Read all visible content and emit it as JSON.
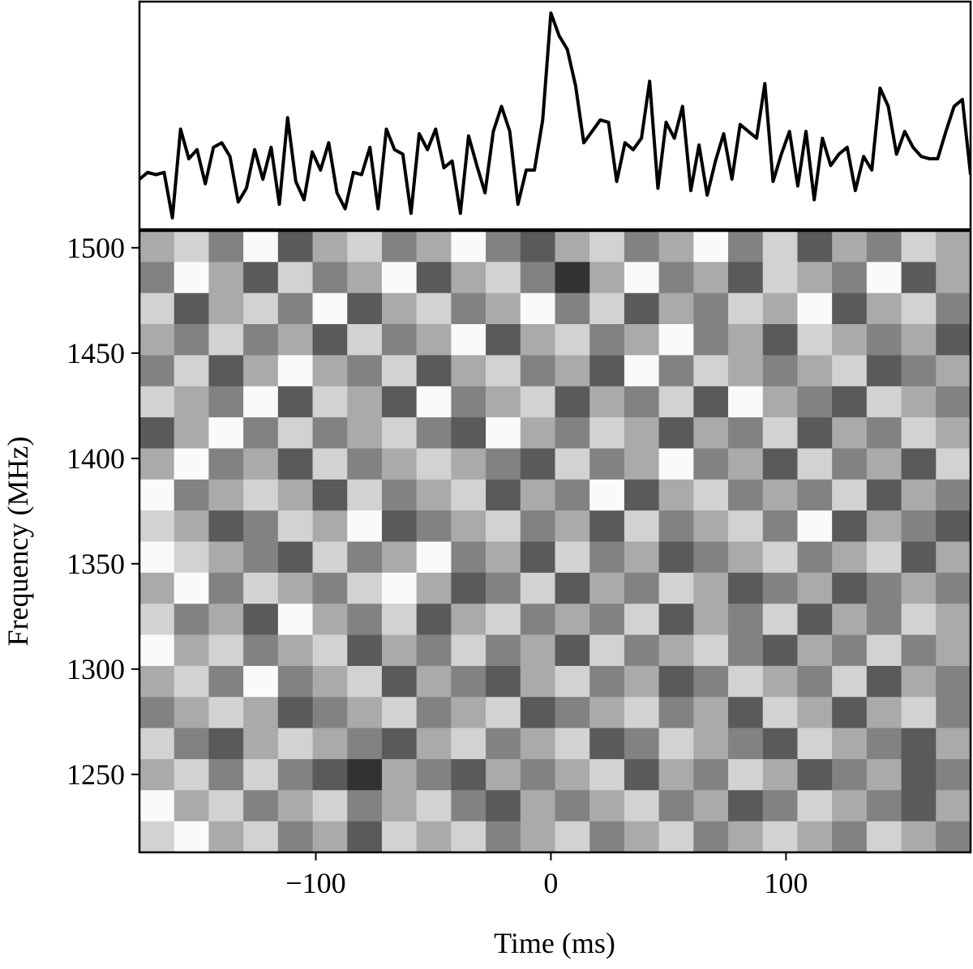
{
  "chart_data": [
    {
      "type": "line",
      "color": "#000000",
      "xlim": [
        -175,
        178.5
      ],
      "ylim": [
        0,
        100
      ],
      "x": [
        -175,
        -171.5,
        -168,
        -164.5,
        -161,
        -157.5,
        -154,
        -150.5,
        -147,
        -143.5,
        -140,
        -136.5,
        -133,
        -129.5,
        -126,
        -122.5,
        -119,
        -115.5,
        -112,
        -108.5,
        -105,
        -101.5,
        -98,
        -94.5,
        -91,
        -87.5,
        -84,
        -80.5,
        -77,
        -73.5,
        -70,
        -66.5,
        -63,
        -59.5,
        -56,
        -52.5,
        -49,
        -45.5,
        -42,
        -38.5,
        -35,
        -31.5,
        -28,
        -24.5,
        -21,
        -17.5,
        -14,
        -10.5,
        -7,
        -3.5,
        0,
        3.5,
        7,
        10.5,
        14,
        17.5,
        21,
        24.5,
        28,
        31.5,
        35,
        38.5,
        42,
        45.5,
        49,
        52.5,
        56,
        59.5,
        63,
        66.5,
        70,
        73.5,
        77,
        80.5,
        84,
        87.5,
        91,
        94.5,
        98,
        101.5,
        105,
        108.5,
        112,
        115.5,
        119,
        122.5,
        126,
        129.5,
        133,
        136.5,
        140,
        143.5,
        147,
        150.5,
        154,
        157.5,
        161,
        164.5,
        168,
        171.5,
        175,
        178.5
      ],
      "values": [
        22,
        25,
        24,
        25,
        5,
        44,
        31,
        35,
        20,
        36,
        38,
        32,
        12,
        18,
        35,
        22,
        36,
        11,
        49,
        21,
        13,
        34,
        26,
        38,
        16,
        9,
        25,
        24,
        36,
        9,
        44,
        35,
        33,
        7,
        42,
        35,
        44,
        27,
        30,
        7,
        41,
        28,
        16,
        43,
        54,
        43,
        11,
        26,
        26,
        48,
        95,
        85,
        79,
        63,
        38,
        43,
        48,
        47,
        21,
        38,
        35,
        40,
        65,
        18,
        47,
        40,
        54,
        17,
        37,
        15,
        30,
        42,
        22,
        46,
        43,
        40,
        64,
        21,
        33,
        43,
        19,
        43,
        13,
        40,
        28,
        33,
        36,
        17,
        32,
        26,
        62,
        54,
        33,
        43,
        36,
        32,
        31,
        31,
        43,
        54,
        57,
        24
      ]
    },
    {
      "type": "heatmap",
      "colormap": "gray",
      "xlim": [
        -175,
        178.5
      ],
      "ylim": [
        1213,
        1508
      ],
      "xticks": [
        {
          "value": -100,
          "label": "−100"
        },
        0,
        100
      ],
      "yticks": [
        1250,
        1300,
        1350,
        1400,
        1450,
        1500
      ],
      "xlabel": "Time (ms)",
      "ylabel": "Frequency (MHz)",
      "values": [
        [
          6,
          7,
          5,
          8,
          4,
          6,
          7,
          5,
          6,
          8,
          5,
          4,
          6,
          7,
          5,
          6,
          8,
          5,
          7,
          4,
          6,
          5,
          7,
          6
        ],
        [
          5,
          8,
          6,
          4,
          7,
          5,
          6,
          8,
          4,
          6,
          7,
          5,
          3,
          6,
          8,
          5,
          6,
          4,
          7,
          6,
          5,
          8,
          4,
          6
        ],
        [
          7,
          4,
          6,
          7,
          5,
          8,
          4,
          6,
          7,
          5,
          6,
          8,
          5,
          7,
          4,
          6,
          5,
          7,
          6,
          8,
          4,
          6,
          7,
          5
        ],
        [
          6,
          5,
          7,
          5,
          6,
          4,
          7,
          5,
          6,
          8,
          4,
          6,
          7,
          5,
          6,
          8,
          5,
          6,
          4,
          7,
          6,
          5,
          6,
          4
        ],
        [
          5,
          7,
          4,
          6,
          8,
          6,
          5,
          7,
          4,
          6,
          7,
          5,
          6,
          4,
          8,
          5,
          7,
          6,
          5,
          6,
          7,
          4,
          5,
          6
        ],
        [
          7,
          6,
          5,
          8,
          4,
          7,
          6,
          4,
          8,
          5,
          6,
          7,
          4,
          6,
          5,
          7,
          4,
          8,
          6,
          5,
          4,
          7,
          6,
          5
        ],
        [
          4,
          6,
          8,
          5,
          7,
          5,
          6,
          7,
          5,
          4,
          8,
          6,
          5,
          7,
          6,
          4,
          6,
          5,
          7,
          4,
          6,
          5,
          7,
          6
        ],
        [
          6,
          8,
          5,
          6,
          4,
          7,
          5,
          6,
          7,
          6,
          5,
          4,
          7,
          5,
          6,
          8,
          5,
          6,
          4,
          7,
          5,
          6,
          4,
          7
        ],
        [
          8,
          5,
          6,
          7,
          6,
          4,
          7,
          5,
          6,
          7,
          4,
          6,
          5,
          8,
          4,
          6,
          7,
          5,
          6,
          5,
          7,
          4,
          6,
          5
        ],
        [
          7,
          6,
          4,
          5,
          7,
          6,
          8,
          4,
          5,
          6,
          7,
          5,
          6,
          4,
          7,
          5,
          6,
          7,
          5,
          8,
          4,
          6,
          5,
          4
        ],
        [
          8,
          7,
          6,
          5,
          4,
          7,
          5,
          6,
          8,
          5,
          6,
          4,
          7,
          5,
          6,
          4,
          5,
          6,
          7,
          5,
          6,
          7,
          4,
          6
        ],
        [
          6,
          8,
          5,
          7,
          6,
          5,
          7,
          8,
          6,
          4,
          5,
          7,
          4,
          6,
          5,
          7,
          6,
          4,
          5,
          6,
          4,
          5,
          6,
          5
        ],
        [
          7,
          5,
          6,
          4,
          8,
          6,
          5,
          7,
          4,
          6,
          7,
          5,
          6,
          5,
          7,
          4,
          6,
          5,
          7,
          4,
          6,
          5,
          7,
          6
        ],
        [
          8,
          6,
          7,
          5,
          6,
          7,
          4,
          6,
          5,
          7,
          5,
          6,
          4,
          7,
          5,
          6,
          7,
          5,
          4,
          6,
          5,
          7,
          5,
          6
        ],
        [
          6,
          7,
          5,
          8,
          5,
          6,
          7,
          4,
          6,
          5,
          4,
          6,
          7,
          5,
          6,
          4,
          5,
          7,
          6,
          5,
          7,
          4,
          6,
          5
        ],
        [
          5,
          6,
          7,
          6,
          4,
          5,
          6,
          7,
          5,
          6,
          7,
          4,
          5,
          6,
          7,
          5,
          6,
          4,
          7,
          6,
          4,
          6,
          7,
          5
        ],
        [
          7,
          5,
          4,
          6,
          7,
          6,
          5,
          4,
          6,
          7,
          5,
          6,
          7,
          4,
          5,
          7,
          6,
          5,
          4,
          7,
          6,
          5,
          4,
          6
        ],
        [
          6,
          7,
          5,
          7,
          5,
          4,
          3,
          6,
          5,
          4,
          6,
          5,
          6,
          7,
          4,
          6,
          5,
          7,
          6,
          4,
          5,
          6,
          4,
          5
        ],
        [
          8,
          6,
          7,
          5,
          6,
          7,
          5,
          6,
          7,
          5,
          4,
          6,
          5,
          6,
          7,
          5,
          6,
          4,
          5,
          7,
          6,
          5,
          4,
          6
        ],
        [
          7,
          8,
          6,
          7,
          5,
          6,
          4,
          7,
          6,
          7,
          5,
          6,
          7,
          5,
          6,
          7,
          5,
          6,
          7,
          6,
          5,
          7,
          6,
          5
        ]
      ]
    }
  ]
}
